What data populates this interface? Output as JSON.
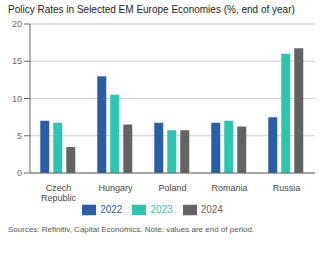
{
  "chart_data": {
    "type": "bar",
    "title": "Policy Rates in Selected EM Europe Economies (%, end of year)",
    "categories": [
      "Czech Republic",
      "Hungary",
      "Poland",
      "Romania",
      "Russia"
    ],
    "series": [
      {
        "name": "2022",
        "color": "#2b5fa5",
        "values": [
          7.0,
          13.0,
          6.75,
          6.75,
          7.5
        ]
      },
      {
        "name": "2023",
        "color": "#2ec4b0",
        "values": [
          6.75,
          10.5,
          5.75,
          7.0,
          16.0
        ]
      },
      {
        "name": "2024",
        "color": "#636363",
        "values": [
          3.5,
          6.5,
          5.75,
          6.25,
          16.75
        ]
      }
    ],
    "ylim": [
      0,
      20
    ],
    "yticks": [
      0,
      5,
      10,
      15,
      20
    ],
    "grid": true,
    "legend": "bottom",
    "annotations": [
      "Sources: Refinitiv, Capital Economics. Note: values are end of period."
    ]
  }
}
